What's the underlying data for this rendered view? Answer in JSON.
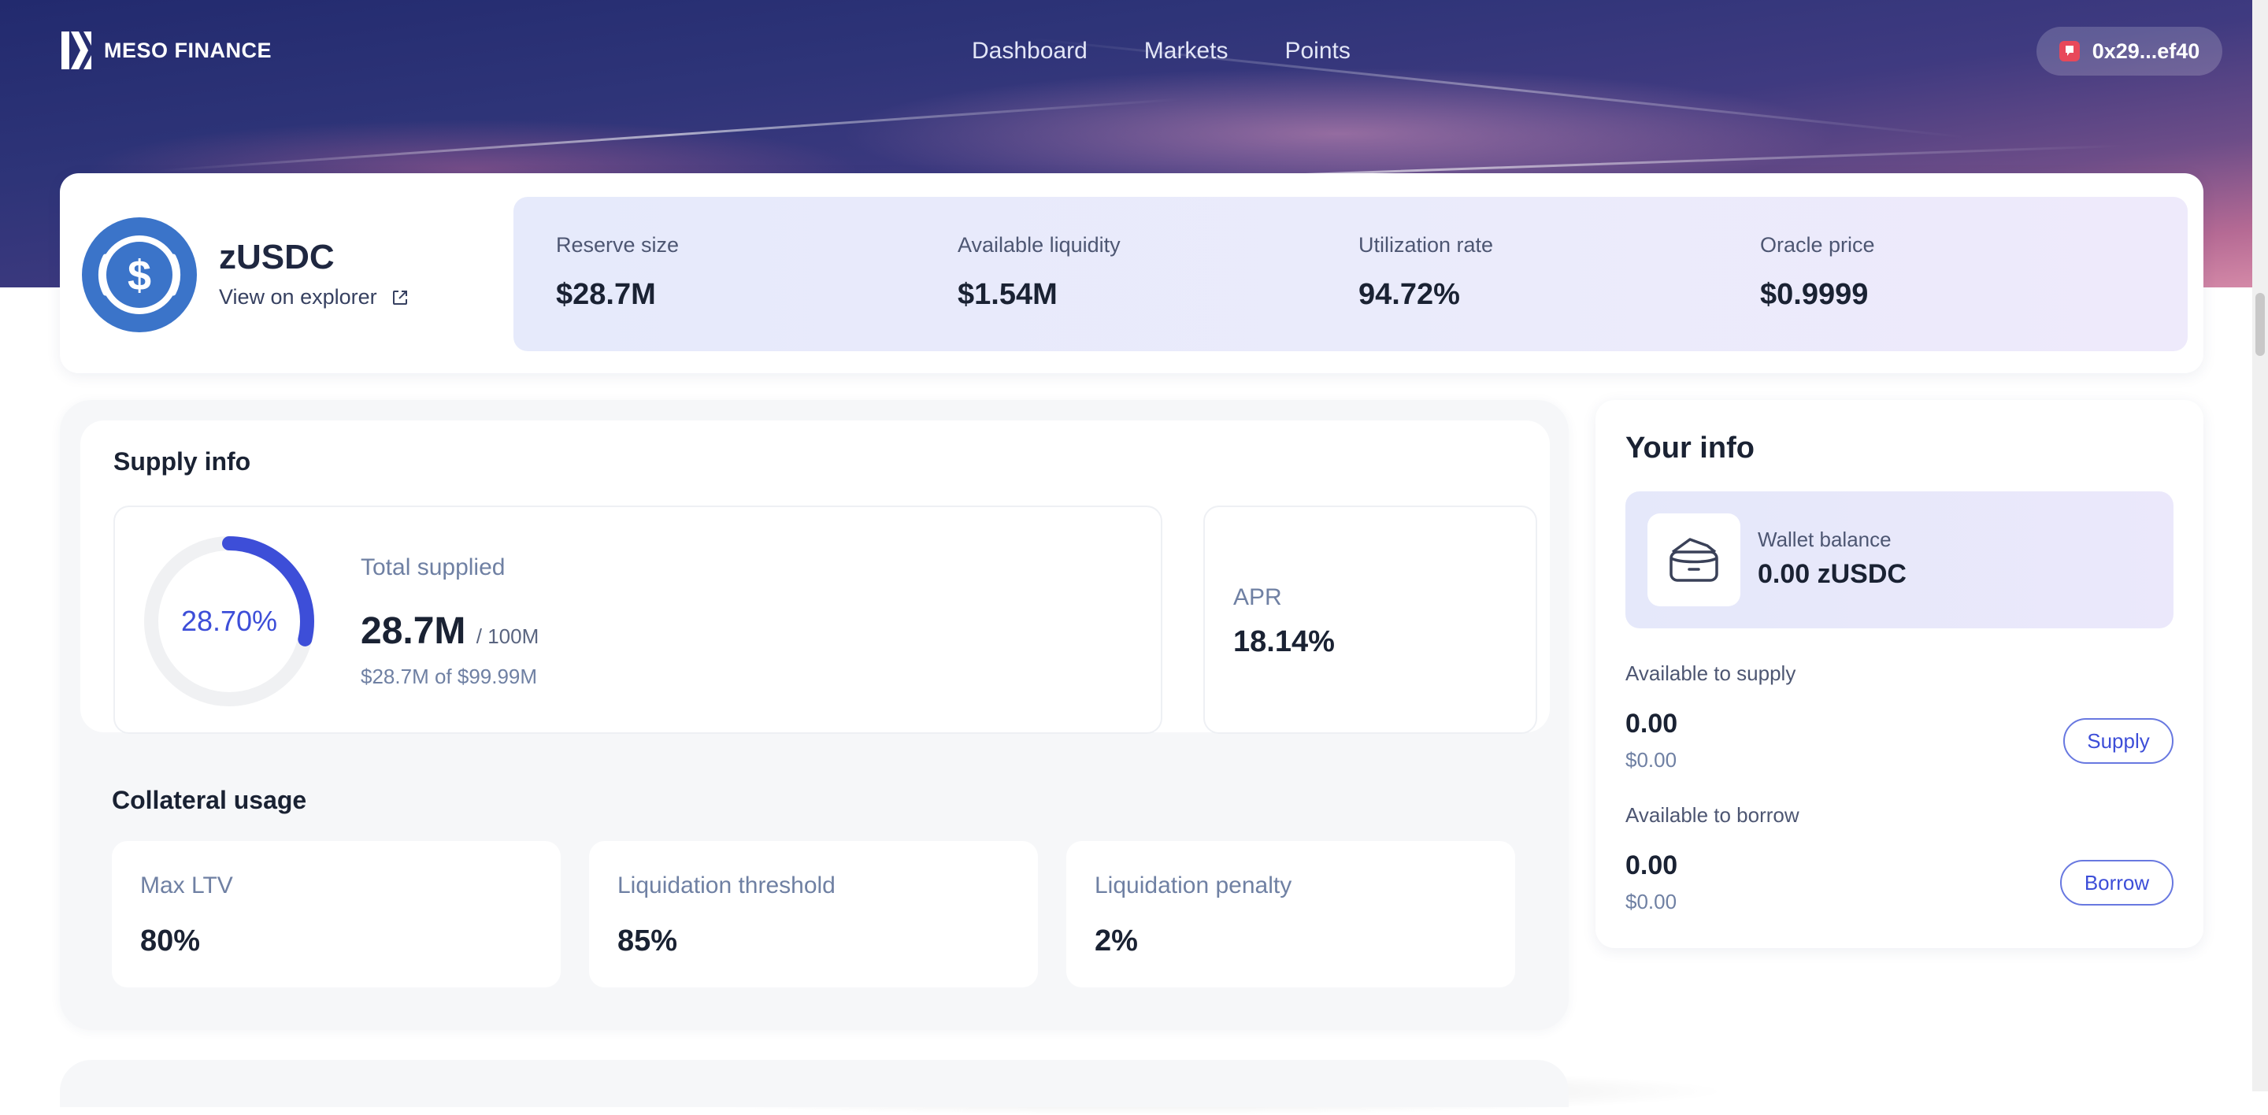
{
  "brand": {
    "name": "MESO FINANCE"
  },
  "nav": {
    "items": [
      "Dashboard",
      "Markets",
      "Points"
    ]
  },
  "wallet": {
    "address": "0x29...ef40"
  },
  "asset": {
    "symbol": "zUSDC",
    "explorer_label": "View on explorer",
    "stats": [
      {
        "label": "Reserve size",
        "value": "$28.7M"
      },
      {
        "label": "Available liquidity",
        "value": "$1.54M"
      },
      {
        "label": "Utilization rate",
        "value": "94.72%"
      },
      {
        "label": "Oracle price",
        "value": "$0.9999"
      }
    ]
  },
  "supply_info": {
    "title": "Supply info",
    "gauge_percent_label": "28.70%",
    "gauge_fraction": 0.287,
    "total_supplied_label": "Total supplied",
    "total_supplied_value": "28.7M",
    "total_supplied_cap": "/ 100M",
    "total_supplied_usd": "$28.7M of $99.99M",
    "apr_label": "APR",
    "apr_value": "18.14%"
  },
  "collateral": {
    "title": "Collateral usage",
    "metrics": [
      {
        "label": "Max LTV",
        "value": "80%"
      },
      {
        "label": "Liquidation threshold",
        "value": "85%"
      },
      {
        "label": "Liquidation penalty",
        "value": "2%"
      }
    ]
  },
  "your_info": {
    "title": "Your info",
    "wallet_balance_label": "Wallet balance",
    "wallet_balance_value": "0.00 zUSDC",
    "supply": {
      "label": "Available to supply",
      "amount": "0.00",
      "usd": "$0.00",
      "button": "Supply"
    },
    "borrow": {
      "label": "Available to borrow",
      "amount": "0.00",
      "usd": "$0.00",
      "button": "Borrow"
    }
  },
  "colors": {
    "accent": "#3d4ed8",
    "gauge_track": "#f0f1f3",
    "asset_icon": "#3b74c9",
    "wallet_dot": "#e8485a"
  }
}
